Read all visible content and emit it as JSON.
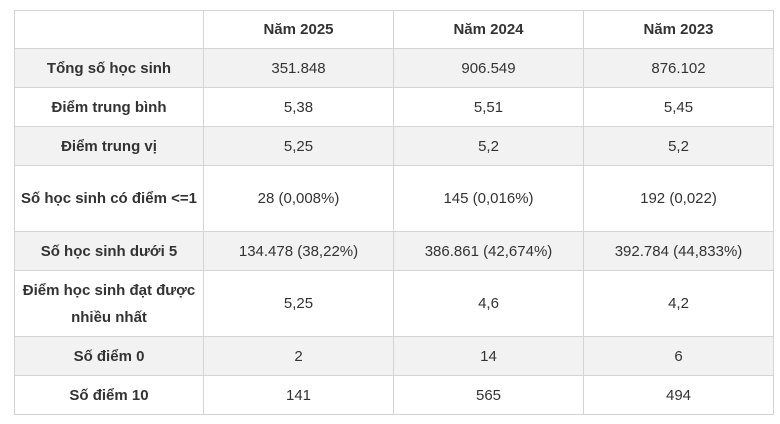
{
  "table": {
    "headers": [
      "",
      "Năm 2025",
      "Năm 2024",
      "Năm 2023"
    ],
    "rows": [
      {
        "label": "Tổng số học sinh",
        "values": [
          "351.848",
          "906.549",
          "876.102"
        ]
      },
      {
        "label": "Điểm trung bình",
        "values": [
          "5,38",
          "5,51",
          "5,45"
        ]
      },
      {
        "label": "Điểm trung vị",
        "values": [
          "5,25",
          "5,2",
          "5,2"
        ]
      },
      {
        "label": "Số học sinh có điểm <=1",
        "values": [
          "28 (0,008%)",
          "145 (0,016%)",
          "192 (0,022)"
        ]
      },
      {
        "label": "Số học sinh dưới 5",
        "values": [
          "134.478 (38,22%)",
          "386.861 (42,674%)",
          "392.784 (44,833%)"
        ]
      },
      {
        "label": "Điểm học sinh đạt được nhiều nhất",
        "values": [
          "5,25",
          "4,6",
          "4,2"
        ]
      },
      {
        "label": "Số điểm 0",
        "values": [
          "2",
          "14",
          "6"
        ]
      },
      {
        "label": "Số điểm 10",
        "values": [
          "141",
          "565",
          "494"
        ]
      }
    ]
  }
}
